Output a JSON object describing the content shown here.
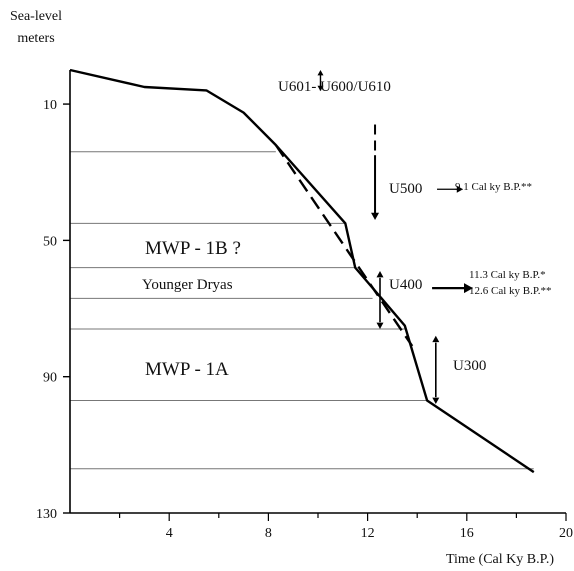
{
  "chart_data": {
    "type": "line",
    "ylabel_line1": "Sea-level",
    "ylabel_line2": "meters",
    "xlabel": "Time (Cal Ky B.P.)",
    "xlim": [
      0,
      20
    ],
    "ylim": [
      0,
      130
    ],
    "y_inverted": true,
    "grid": false,
    "xticks": [
      4,
      8,
      12,
      16,
      20
    ],
    "xtick_labels": [
      "4",
      "8",
      "12",
      "16",
      "20"
    ],
    "yticks": [
      10,
      50,
      90,
      130
    ],
    "ytick_labels": [
      "10",
      "50",
      "90",
      "130"
    ],
    "series": [
      {
        "style": "solid",
        "points": [
          [
            0,
            0
          ],
          [
            3,
            5
          ],
          [
            5.5,
            6
          ],
          [
            7,
            12.5
          ],
          [
            8.3,
            22
          ],
          [
            11.1,
            45
          ],
          [
            11.5,
            58
          ],
          [
            13.5,
            75
          ],
          [
            14.4,
            97
          ],
          [
            18.7,
            118
          ]
        ]
      },
      {
        "style": "dashed",
        "points": [
          [
            8.3,
            22
          ],
          [
            13.8,
            81
          ]
        ]
      }
    ],
    "horizontal_lines": [
      {
        "y": 24,
        "x_end": 8.3
      },
      {
        "y": 45,
        "x_end": 11.1
      },
      {
        "y": 58,
        "x_end": 11.5
      },
      {
        "y": 67,
        "x_end": 12.2
      },
      {
        "y": 76,
        "x_end": 13.5
      },
      {
        "y": 97,
        "x_end": 14.4
      },
      {
        "y": 117,
        "x_end": 18.7
      }
    ],
    "annotations": {
      "mwp1b": "MWP - 1B ?",
      "younger_dryas": "Younger Dryas",
      "mwp1a": "MWP - 1A",
      "u601": "U601- U600/U610",
      "u500": "U500",
      "u500_age": "9.1 Cal ky B.P.**",
      "u400": "U400",
      "u400_age1": "11.3 Cal ky B.P.*",
      "u400_age2": "12.6 Cal ky B.P.**",
      "u300": "U300"
    }
  }
}
